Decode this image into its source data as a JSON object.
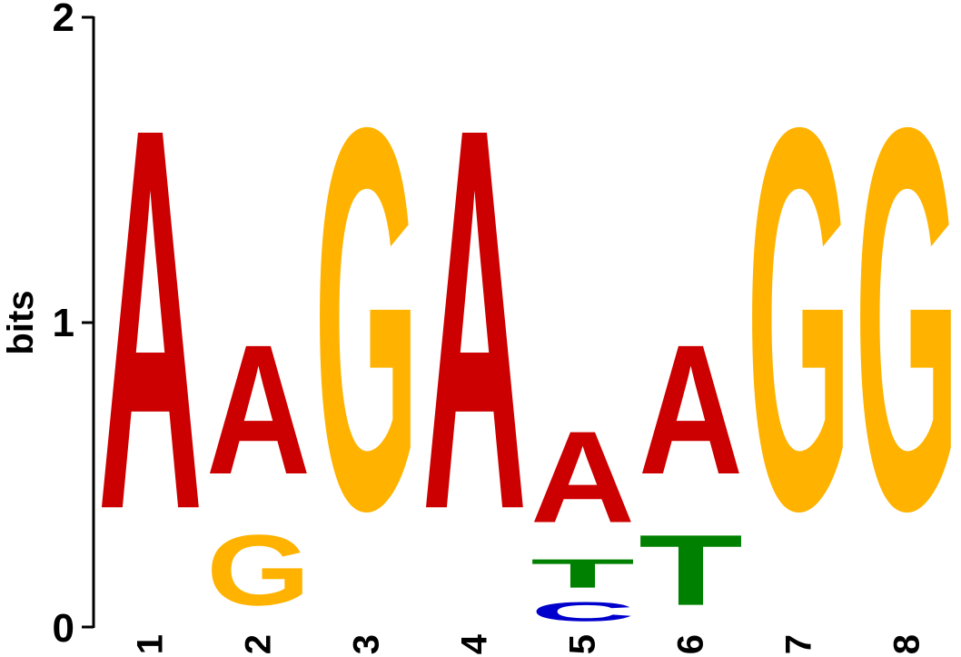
{
  "chart_data": {
    "type": "sequence-logo",
    "title": "",
    "xlabel": "",
    "ylabel": "bits",
    "ylim": [
      0,
      2
    ],
    "yticks": [
      "0",
      "1",
      "2"
    ],
    "positions": [
      "1",
      "2",
      "3",
      "4",
      "5",
      "6",
      "7",
      "8"
    ],
    "columns": [
      {
        "position": "1",
        "stack": [
          {
            "letter": "A",
            "bits": 2.0
          }
        ]
      },
      {
        "position": "2",
        "stack": [
          {
            "letter": "G",
            "bits": 0.37
          },
          {
            "letter": "A",
            "bits": 0.68
          }
        ]
      },
      {
        "position": "3",
        "stack": [
          {
            "letter": "G",
            "bits": 2.0
          }
        ]
      },
      {
        "position": "4",
        "stack": [
          {
            "letter": "A",
            "bits": 2.0
          }
        ]
      },
      {
        "position": "5",
        "stack": [
          {
            "letter": "C",
            "bits": 0.1
          },
          {
            "letter": "T",
            "bits": 0.15
          },
          {
            "letter": "A",
            "bits": 0.48
          }
        ]
      },
      {
        "position": "6",
        "stack": [
          {
            "letter": "T",
            "bits": 0.37
          },
          {
            "letter": "A",
            "bits": 0.68
          }
        ]
      },
      {
        "position": "7",
        "stack": [
          {
            "letter": "G",
            "bits": 2.0
          }
        ]
      },
      {
        "position": "8",
        "stack": [
          {
            "letter": "G",
            "bits": 2.0
          }
        ]
      }
    ],
    "colors": {
      "A": "#cc0000",
      "C": "#0000cc",
      "G": "#ffb300",
      "T": "#008000"
    }
  }
}
